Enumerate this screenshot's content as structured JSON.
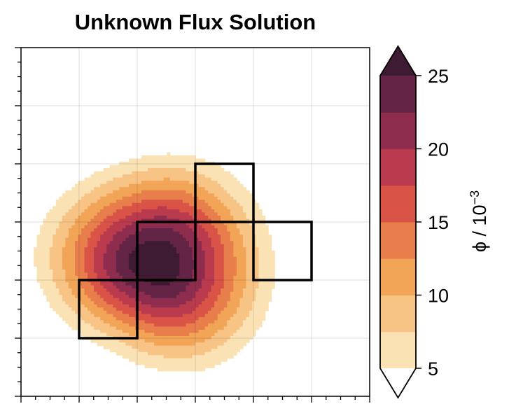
{
  "chart_data": {
    "type": "contourf",
    "title": "Unknown Flux Solution",
    "xlabel": "",
    "ylabel": "",
    "xlim": [
      0,
      6
    ],
    "ylim": [
      0,
      6
    ],
    "xticks_shown_labels": false,
    "yticks_shown_labels": false,
    "grid": true,
    "field": {
      "peak_value": 27,
      "peak_location": [
        2.3,
        2.3
      ],
      "description_levels": [
        5,
        7.5,
        10,
        12.5,
        15,
        17.5,
        20,
        22.5,
        25
      ]
    },
    "overlay_outline": {
      "color": "#000000",
      "cells": [
        [
          1,
          1
        ],
        [
          1,
          2
        ],
        [
          2,
          2
        ],
        [
          2,
          3
        ],
        [
          3,
          3
        ],
        [
          3,
          4
        ],
        [
          4,
          3
        ]
      ],
      "outline_path": [
        [
          1,
          1
        ],
        [
          2,
          1
        ],
        [
          2,
          2
        ],
        [
          3,
          2
        ],
        [
          3,
          4
        ],
        [
          4,
          4
        ],
        [
          4,
          3
        ],
        [
          5,
          3
        ],
        [
          5,
          2
        ],
        [
          4,
          2
        ],
        [
          4,
          3
        ],
        [
          2,
          3
        ],
        [
          2,
          2
        ],
        [
          1,
          2
        ],
        [
          1,
          1
        ]
      ]
    },
    "colorbar": {
      "label": "ϕ / 10⁻³",
      "label_base": "ϕ / 10",
      "label_exponent": "−3",
      "ticks": [
        "5",
        "10",
        "15",
        "20",
        "25"
      ],
      "levels": [
        5,
        7.5,
        10,
        12.5,
        15,
        17.5,
        20,
        22.5,
        25
      ],
      "extend": "both",
      "colors": [
        "#fbe2b4",
        "#f7c486",
        "#f2a457",
        "#e87e4b",
        "#d95447",
        "#b93b4d",
        "#8f2d4f",
        "#632445",
        "#3e1a33"
      ],
      "under_color": "#ffffff",
      "over_color": "#3e1a33"
    }
  }
}
